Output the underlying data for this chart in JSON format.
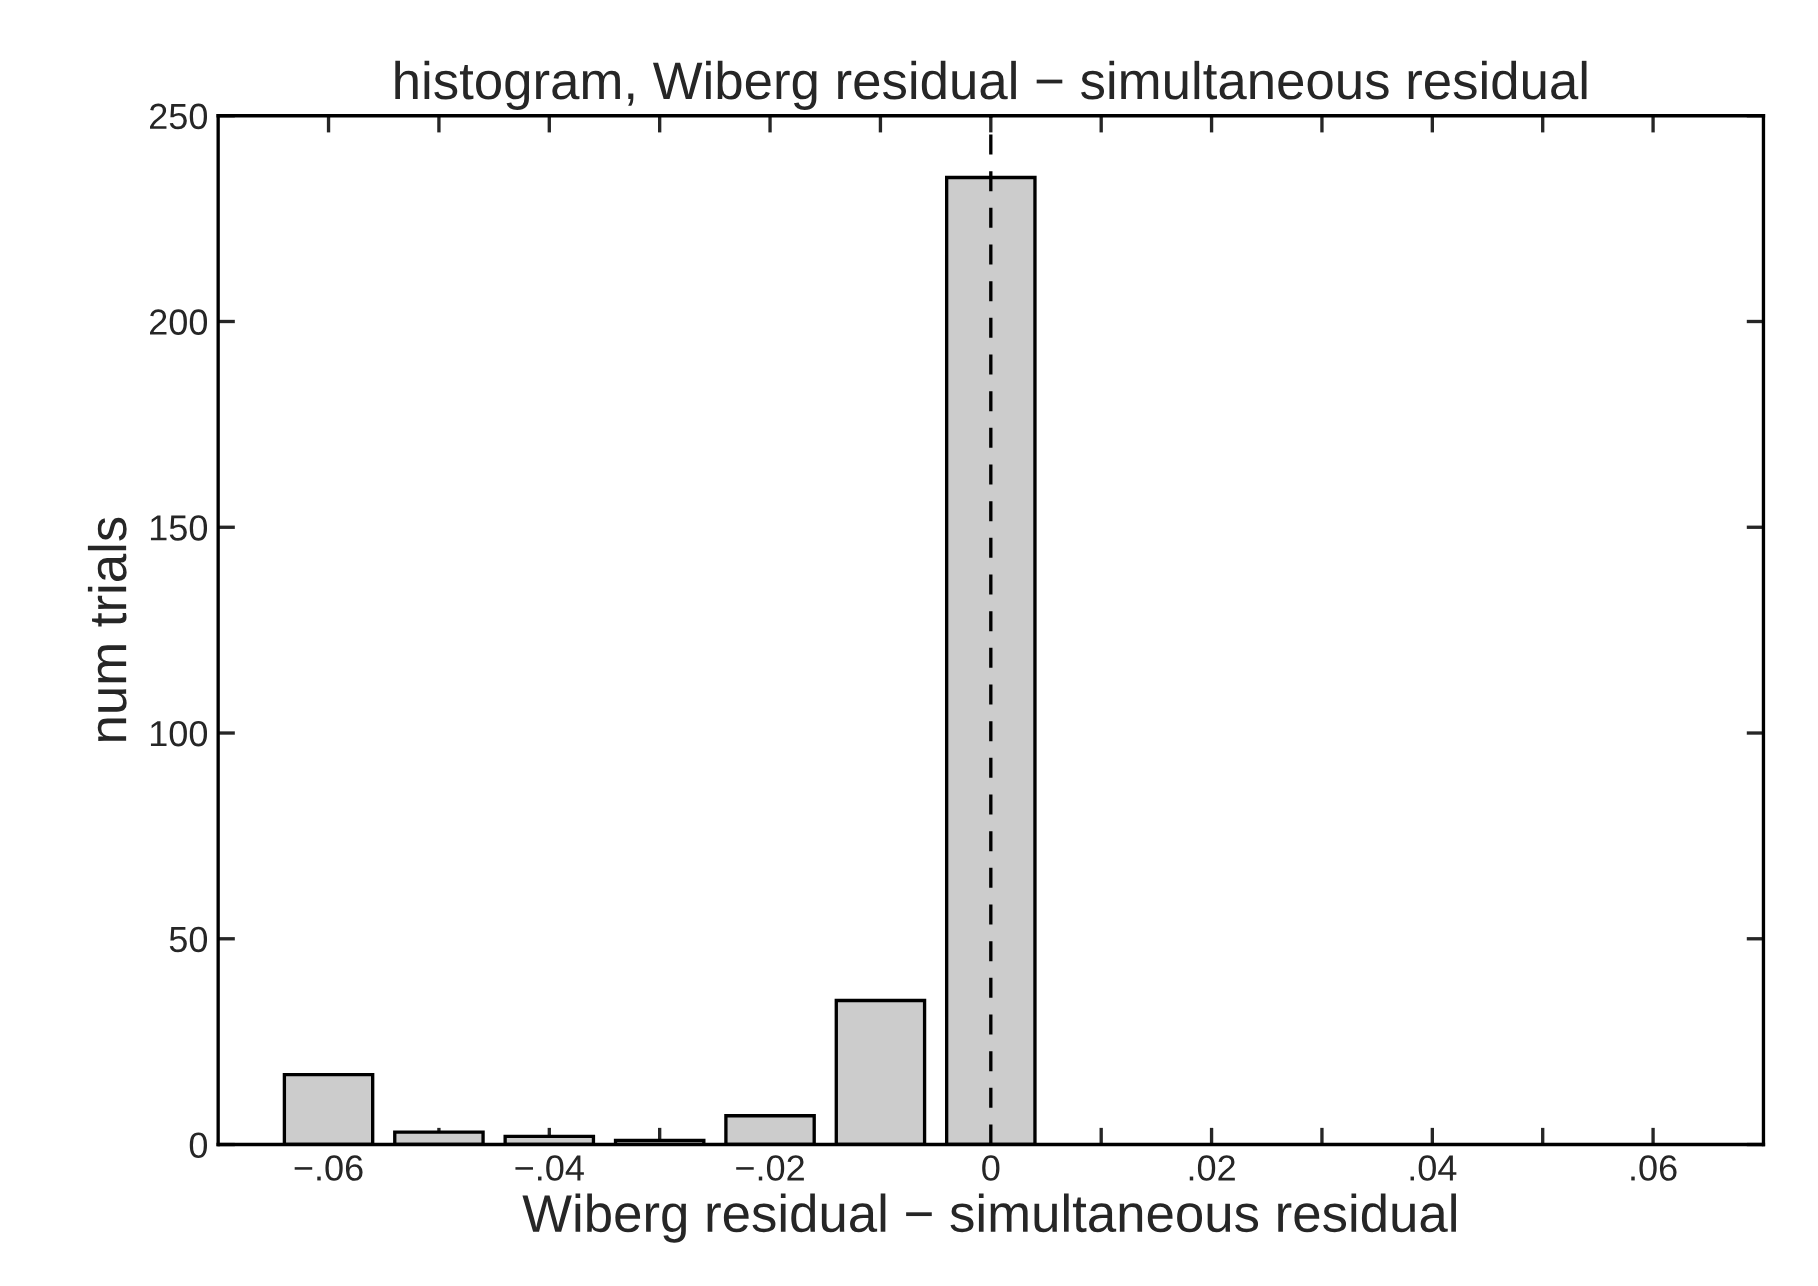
{
  "chart_data": {
    "type": "histogram",
    "title": "histogram, Wiberg residual − simultaneous residual",
    "xlabel": "Wiberg residual − simultaneous residual",
    "ylabel": "num trials",
    "bins": [
      -0.065,
      -0.055,
      -0.045,
      -0.035,
      -0.025,
      -0.015,
      -0.005,
      0.005
    ],
    "values": [
      17,
      3,
      2,
      1,
      7,
      35,
      235
    ],
    "color": "#cccccc",
    "xlim": [
      -0.07,
      0.07
    ],
    "xticks": [
      {
        "value": -0.06,
        "label": "−.06"
      },
      {
        "value": -0.05,
        "label": null
      },
      {
        "value": -0.04,
        "label": "−.04"
      },
      {
        "value": -0.03,
        "label": null
      },
      {
        "value": -0.02,
        "label": "−.02"
      },
      {
        "value": -0.01,
        "label": null
      },
      0,
      {
        "value": 0.01,
        "label": null
      },
      {
        "value": 0.02,
        "label": ".02"
      },
      {
        "value": 0.03,
        "label": null
      },
      {
        "value": 0.04,
        "label": ".04"
      },
      {
        "value": 0.05,
        "label": null
      },
      {
        "value": 0.06,
        "label": ".06"
      }
    ],
    "ylim": [
      0,
      250
    ],
    "yticks": [
      0,
      50,
      100,
      150,
      200,
      250
    ],
    "ref_lines": [
      {
        "axis": "x",
        "value": 0,
        "color": "#000000",
        "line_style": "dashed"
      }
    ],
    "grid": false
  }
}
